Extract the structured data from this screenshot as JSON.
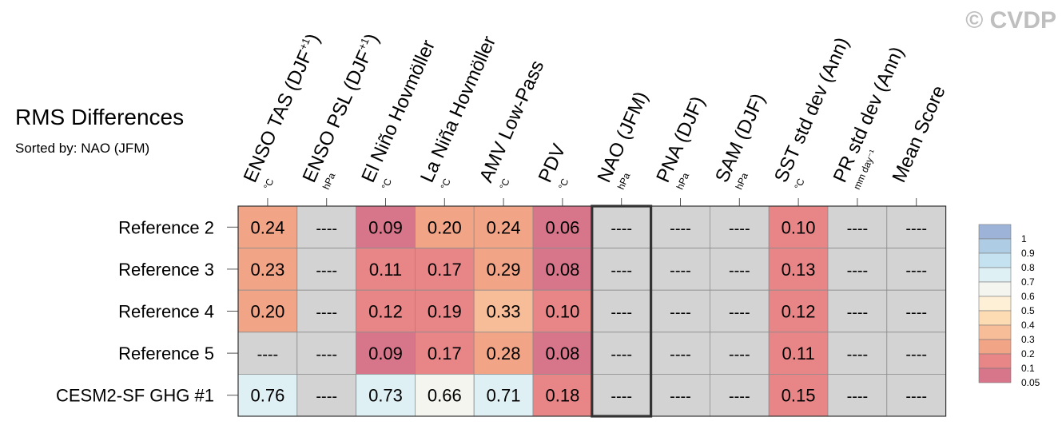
{
  "watermark": "© CVDP",
  "chart_data": {
    "type": "heatmap",
    "title": "RMS Differences",
    "subtitle": "Sorted by: NAO (JFM)",
    "sorted_by": "NAO (JFM)",
    "columns": [
      {
        "label": "ENSO TAS (DJF",
        "sup": "+1",
        "close": ")",
        "unit": "°C"
      },
      {
        "label": "ENSO PSL (DJF",
        "sup": "+1",
        "close": ")",
        "unit": "hPa"
      },
      {
        "label": "El Niño Hovmöller",
        "sup": "",
        "close": "",
        "unit": "°C"
      },
      {
        "label": "La Niña Hovmöller",
        "sup": "",
        "close": "",
        "unit": "°C"
      },
      {
        "label": "AMV Low-Pass",
        "sup": "",
        "close": "",
        "unit": "°C"
      },
      {
        "label": "PDV",
        "sup": "",
        "close": "",
        "unit": "°C"
      },
      {
        "label": "NAO (JFM)",
        "sup": "",
        "close": "",
        "unit": "hPa"
      },
      {
        "label": "PNA (DJF)",
        "sup": "",
        "close": "",
        "unit": "hPa"
      },
      {
        "label": "SAM (DJF)",
        "sup": "",
        "close": "",
        "unit": "hPa"
      },
      {
        "label": "SST std dev (Ann)",
        "sup": "",
        "close": "",
        "unit": "°C"
      },
      {
        "label": "PR std dev (Ann)",
        "sup": "",
        "close": "",
        "unit": "mm day⁻¹"
      },
      {
        "label": "Mean Score",
        "sup": "",
        "close": "",
        "unit": ""
      }
    ],
    "rows": [
      "Reference 2",
      "Reference 3",
      "Reference 4",
      "Reference 5",
      "CESM2-SF GHG #1"
    ],
    "values": [
      [
        0.24,
        null,
        0.09,
        0.2,
        0.24,
        0.06,
        null,
        null,
        null,
        0.1,
        null,
        null
      ],
      [
        0.23,
        null,
        0.11,
        0.17,
        0.29,
        0.08,
        null,
        null,
        null,
        0.13,
        null,
        null
      ],
      [
        0.2,
        null,
        0.12,
        0.19,
        0.33,
        0.1,
        null,
        null,
        null,
        0.12,
        null,
        null
      ],
      [
        null,
        null,
        0.09,
        0.17,
        0.28,
        0.08,
        null,
        null,
        null,
        0.11,
        null,
        null
      ],
      [
        0.76,
        null,
        0.73,
        0.66,
        0.71,
        0.18,
        null,
        null,
        null,
        0.15,
        null,
        null
      ]
    ],
    "missing_label": "----",
    "missing_color": "#d3d3d3",
    "highlight_column": 6,
    "colorbar": {
      "levels": [
        "1",
        "0.9",
        "0.8",
        "0.7",
        "0.6",
        "0.5",
        "0.4",
        "0.3",
        "0.2",
        "0.1",
        "0.05"
      ],
      "colors": [
        "#9db4d8",
        "#aecde4",
        "#c4e2ef",
        "#dff0f4",
        "#f4f5ef",
        "#fdf0d6",
        "#fddcb3",
        "#f7bc98",
        "#f2a487",
        "#e88587",
        "#d7758a"
      ]
    }
  }
}
